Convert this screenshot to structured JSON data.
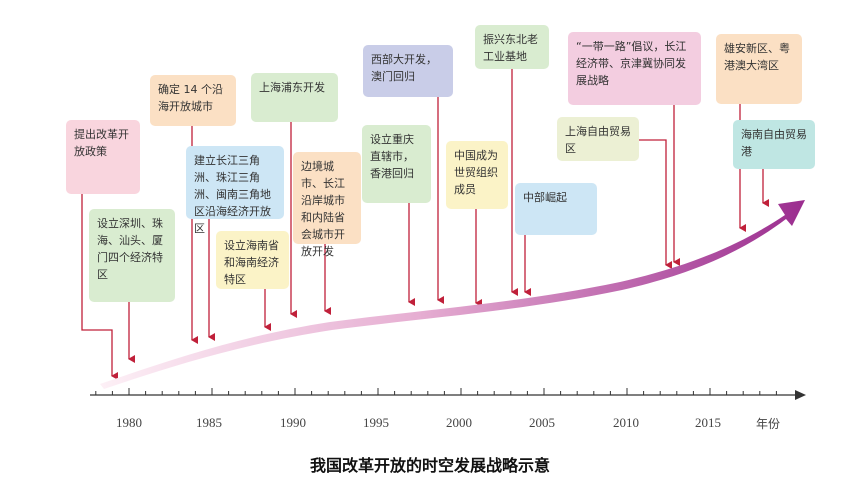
{
  "caption": "我国改革开放的时空发展战略示意",
  "axis": {
    "unit_label": "年份",
    "ticks": [
      "1980",
      "1985",
      "1990",
      "1995",
      "2000",
      "2005",
      "2010",
      "2015"
    ]
  },
  "events": [
    {
      "id": "e1",
      "text": "提出改革开放政策",
      "color": "#f9d5de"
    },
    {
      "id": "e2",
      "text": "设立深圳、珠海、汕头、厦门四个经济特区",
      "color": "#d9ecd0"
    },
    {
      "id": "e3",
      "text": "确定 14 个沿海开放城市",
      "color": "#fbe0c4"
    },
    {
      "id": "e4",
      "text": "建立长江三角洲、珠江三角洲、闽南三角地区沿海经济开放区",
      "color": "#cde6f5"
    },
    {
      "id": "e5",
      "text": "设立海南省和海南经济特区",
      "color": "#fbf3c7"
    },
    {
      "id": "e6",
      "text": "上海浦东开发",
      "color": "#d9ecd0"
    },
    {
      "id": "e7",
      "text": "边境城市、长江沿岸城市和内陆省会城市开放开发",
      "color": "#fbe0c4"
    },
    {
      "id": "e8",
      "text": "西部大开发，澳门回归",
      "color": "#c9cde8"
    },
    {
      "id": "e9",
      "text": "设立重庆直辖市，香港回归",
      "color": "#d9ecd0"
    },
    {
      "id": "e10",
      "text": "中国成为世贸组织成员",
      "color": "#fbf3c7"
    },
    {
      "id": "e11",
      "text": "振兴东北老工业基地",
      "color": "#d9ecd0"
    },
    {
      "id": "e12",
      "text": "中部崛起",
      "color": "#cde6f5"
    },
    {
      "id": "e13",
      "text": "“一带一路”倡议，长江经济带、京津冀协同发展战略",
      "color": "#f3cde0"
    },
    {
      "id": "e14",
      "text": "上海自由贸易区",
      "color": "#ecf0d4"
    },
    {
      "id": "e15",
      "text": "雄安新区、粤港澳大湾区",
      "color": "#fbe0c4"
    },
    {
      "id": "e16",
      "text": "海南自由贸易港",
      "color": "#bfe6e3"
    }
  ],
  "colors": {
    "arrow_start": "#fce8f2",
    "arrow_end": "#9b2d8f",
    "connector": "#c0203a",
    "axis": "#333333"
  }
}
